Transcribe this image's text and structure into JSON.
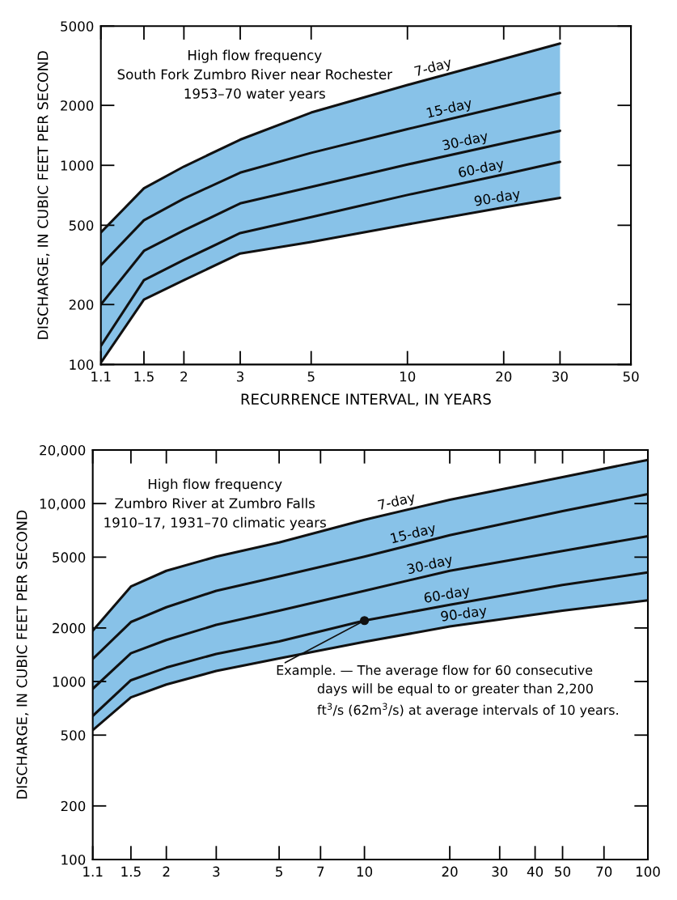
{
  "chart_data": [
    {
      "type": "line",
      "title": "High flow frequency\nSouth Fork Zumbro River near Rochester\n1953–70 water years",
      "xlabel": "RECURRENCE INTERVAL, IN YEARS",
      "ylabel": "DISCHARGE, IN CUBIC FEET PER SECOND",
      "log": "xy",
      "xlim": [
        1.1,
        50
      ],
      "xticks": [
        1.1,
        1.5,
        2,
        3,
        5,
        10,
        20,
        30,
        50
      ],
      "ylim": [
        100,
        5000
      ],
      "yticks": [
        100,
        200,
        500,
        1000,
        2000,
        5000
      ],
      "grid": false,
      "x": [
        1.1,
        1.5,
        2,
        3,
        5,
        10,
        20,
        30
      ],
      "series": [
        {
          "name": "7-day",
          "color": "#111111",
          "values": [
            460,
            767,
            986,
            1346,
            1840,
            2530,
            3420,
            4090
          ]
        },
        {
          "name": "15-day",
          "color": "#111111",
          "values": [
            315,
            530,
            681,
            919,
            1155,
            1520,
            1980,
            2310
          ]
        },
        {
          "name": "30-day",
          "color": "#111111",
          "values": [
            200,
            372,
            471,
            644,
            778,
            1009,
            1290,
            1490
          ],
          "lower": [
            102,
            212,
            265,
            361,
            412,
            505,
            615,
            687
          ],
          "upper": [
            460,
            767,
            986,
            1346,
            1840,
            2530,
            3420,
            4090
          ]
        },
        {
          "name": "60-day",
          "color": "#111111",
          "values": [
            124,
            265,
            335,
            457,
            550,
            710,
            900,
            1040
          ]
        },
        {
          "name": "90-day",
          "color": "#111111",
          "values": [
            102,
            212,
            265,
            361,
            412,
            505,
            615,
            687
          ]
        }
      ]
    },
    {
      "type": "line",
      "title": "High flow frequency\nZumbro River at Zumbro Falls\n1910–17, 1931–70 climatic years",
      "ylabel": "DISCHARGE, IN CUBIC FEET PER SECOND",
      "log": "xy",
      "xlim": [
        1.1,
        100
      ],
      "xticks": [
        1.1,
        1.5,
        2,
        3,
        5,
        7,
        10,
        20,
        30,
        40,
        50,
        70,
        100
      ],
      "ylim": [
        100,
        20000
      ],
      "yticks": [
        100,
        200,
        500,
        1000,
        2000,
        5000,
        {
          "value": 10000,
          "label": "10,000"
        },
        {
          "value": 20000,
          "label": "20,000"
        }
      ],
      "grid": false,
      "x": [
        1.1,
        1.5,
        2,
        3,
        5,
        10,
        20,
        50,
        100
      ],
      "annotations": [
        {
          "text": "Example. — The average flow for 60 consecutive\n          days will be equal to or greater than 2,200\n          ft$^{3}$/s (62m$^{3}$/s) at average intervals of 10 years.",
          "x": 10,
          "y": 2200
        }
      ],
      "series": [
        {
          "name": "7-day",
          "color": "#111111",
          "values": [
            1930,
            3420,
            4190,
            5030,
            6050,
            8110,
            10500,
            14100,
            17600
          ]
        },
        {
          "name": "15-day",
          "color": "#111111",
          "values": [
            1340,
            2160,
            2615,
            3236,
            3890,
            5030,
            6640,
            9080,
            11300
          ]
        },
        {
          "name": "30-day",
          "color": "#111111",
          "values": [
            910,
            1442,
            1711,
            2082,
            2500,
            3235,
            4190,
            5420,
            6560
          ],
          "lower": [
            533,
            815,
            962,
            1147,
            1348,
            1670,
            2040,
            2500,
            2860
          ],
          "upper": [
            1930,
            3420,
            4190,
            5030,
            6050,
            8110,
            10500,
            14100,
            17600
          ]
        },
        {
          "name": "60-day",
          "color": "#111111",
          "values": [
            641,
            1017,
            1198,
            1430,
            1681,
            2200,
            2700,
            3490,
            4100
          ]
        },
        {
          "name": "90-day",
          "color": "#111111",
          "values": [
            533,
            815,
            962,
            1147,
            1348,
            1670,
            2040,
            2500,
            2860
          ]
        }
      ]
    }
  ]
}
